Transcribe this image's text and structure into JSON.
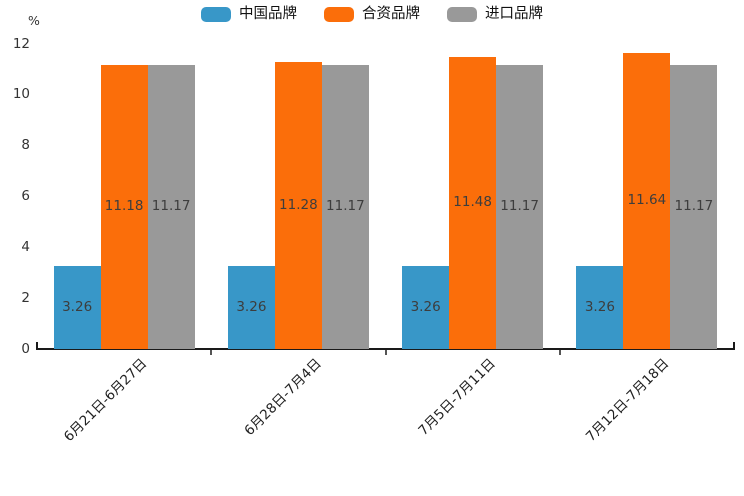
{
  "chart": {
    "unit_label": "%"
  },
  "chart_data": {
    "type": "bar",
    "title": "",
    "xlabel": "",
    "ylabel": "%",
    "ylim": [
      0,
      12
    ],
    "yticks": [
      0,
      2,
      4,
      6,
      8,
      10,
      12
    ],
    "grid": false,
    "legend_position": "top-center",
    "value_labels": true,
    "categories": [
      "6月21日-6月27日",
      "6月28日-7月4日",
      "7月5日-7月11日",
      "7月12日-7月18日"
    ],
    "series": [
      {
        "name": "中国品牌",
        "color": "#3897C8",
        "values": [
          3.26,
          3.26,
          3.26,
          3.26
        ]
      },
      {
        "name": "合资品牌",
        "color": "#FB6E0A",
        "values": [
          11.18,
          11.28,
          11.48,
          11.64
        ]
      },
      {
        "name": "进口品牌",
        "color": "#999999",
        "values": [
          11.17,
          11.17,
          11.17,
          11.17
        ]
      }
    ],
    "colors": {
      "axis": "#1a1a1a",
      "tick": "#555555",
      "value_label_text": "#3d3d3d",
      "axis_label_text": "#333333"
    }
  }
}
